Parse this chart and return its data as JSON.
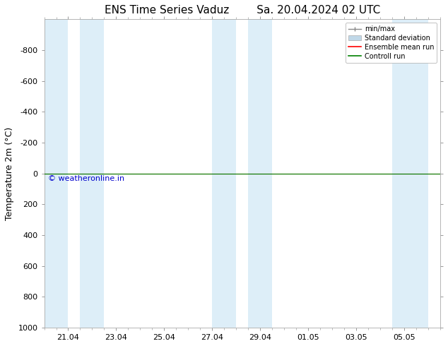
{
  "title": "ENS Time Series Vaduz        Sa. 20.04.2024 02 UTC",
  "ylabel": "Temperature 2m (°C)",
  "ylim_top": -1000,
  "ylim_bottom": 1000,
  "yticks": [
    -800,
    -600,
    -400,
    -200,
    0,
    200,
    400,
    600,
    800,
    1000
  ],
  "xtick_labels": [
    "21.04",
    "23.04",
    "25.04",
    "27.04",
    "29.04",
    "01.05",
    "03.05",
    "05.05"
  ],
  "xtick_positions": [
    1,
    3,
    5,
    7,
    9,
    11,
    13,
    15
  ],
  "xlim": [
    0,
    16
  ],
  "bg_color": "#ffffff",
  "plot_bg_color": "#ffffff",
  "shaded_spans": [
    [
      0.0,
      1.0
    ],
    [
      1.5,
      2.5
    ],
    [
      7.0,
      8.0
    ],
    [
      8.5,
      9.5
    ],
    [
      14.5,
      16.0
    ]
  ],
  "shaded_color": "#ddeef8",
  "horizontal_line_y": 0,
  "ensemble_mean_color": "#ff0000",
  "control_run_color": "#008000",
  "minmax_color": "#888888",
  "std_dev_facecolor": "#c0d8e8",
  "watermark": "© weatheronline.in",
  "watermark_color": "#0000cc",
  "watermark_fontsize": 8,
  "legend_labels": [
    "min/max",
    "Standard deviation",
    "Ensemble mean run",
    "Controll run"
  ],
  "title_fontsize": 11,
  "ylabel_fontsize": 9,
  "tick_fontsize": 8
}
